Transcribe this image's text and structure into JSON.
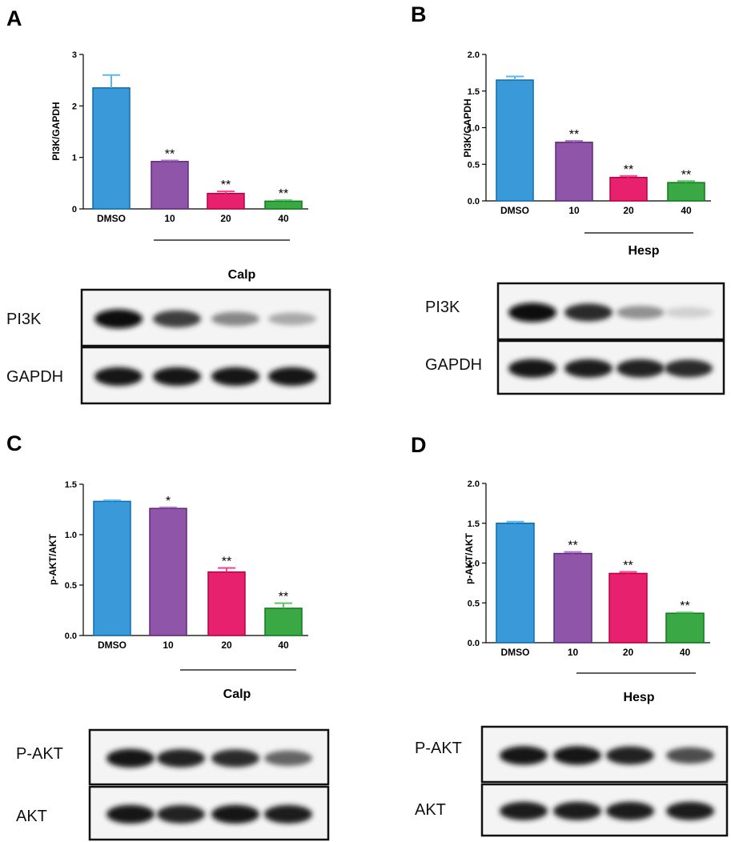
{
  "chart_data": [
    {
      "type": "bar",
      "panel": "A",
      "ylabel": "PI3K/GAPDH",
      "group_label": "Calp",
      "categories": [
        "DMSO",
        "10",
        "20",
        "40"
      ],
      "values": [
        2.35,
        0.92,
        0.3,
        0.15
      ],
      "errors": [
        0.25,
        0.02,
        0.04,
        0.02
      ],
      "significance": [
        "",
        "**",
        "**",
        "**"
      ],
      "ylim": [
        0,
        3
      ],
      "yticks": [
        "0",
        "1",
        "2",
        "3"
      ],
      "colors": [
        "#3a9ad9",
        "#8e55a8",
        "#e7216d",
        "#3aa845"
      ],
      "blot": {
        "rows": [
          {
            "label": "PI3K",
            "intensity": [
              1.0,
              0.78,
              0.45,
              0.3
            ]
          },
          {
            "label": "GAPDH",
            "intensity": [
              0.95,
              0.95,
              0.95,
              0.95
            ]
          }
        ]
      }
    },
    {
      "type": "bar",
      "panel": "B",
      "ylabel": "PI3K/GAPDH",
      "group_label": "Hesp",
      "categories": [
        "DMSO",
        "10",
        "20",
        "40"
      ],
      "values": [
        1.65,
        0.8,
        0.32,
        0.25
      ],
      "errors": [
        0.05,
        0.02,
        0.02,
        0.02
      ],
      "significance": [
        "",
        "**",
        "**",
        "**"
      ],
      "ylim": [
        0,
        2.0
      ],
      "yticks": [
        "0.0",
        "0.5",
        "1.0",
        "1.5",
        "2.0"
      ],
      "colors": [
        "#3a9ad9",
        "#8e55a8",
        "#e7216d",
        "#3aa845"
      ],
      "blot": {
        "rows": [
          {
            "label": "PI3K",
            "intensity": [
              1.0,
              0.85,
              0.4,
              0.12
            ]
          },
          {
            "label": "GAPDH",
            "intensity": [
              0.95,
              0.92,
              0.9,
              0.85
            ]
          }
        ]
      }
    },
    {
      "type": "bar",
      "panel": "C",
      "ylabel": "p-AKT/AKT",
      "group_label": "Calp",
      "categories": [
        "DMSO",
        "10",
        "20",
        "40"
      ],
      "values": [
        1.33,
        1.26,
        0.63,
        0.27
      ],
      "errors": [
        0.01,
        0.01,
        0.04,
        0.05
      ],
      "significance": [
        "",
        "*",
        "**",
        "**"
      ],
      "ylim": [
        0,
        1.5
      ],
      "yticks": [
        "0.0",
        "0.5",
        "1.0",
        "1.5"
      ],
      "colors": [
        "#3a9ad9",
        "#8e55a8",
        "#e7216d",
        "#3aa845"
      ],
      "blot": {
        "rows": [
          {
            "label": "P-AKT",
            "intensity": [
              0.95,
              0.9,
              0.85,
              0.6
            ]
          },
          {
            "label": "AKT",
            "intensity": [
              0.95,
              0.9,
              0.95,
              0.92
            ]
          }
        ]
      }
    },
    {
      "type": "bar",
      "panel": "D",
      "ylabel": "p-AKT/AKT",
      "group_label": "Hesp",
      "categories": [
        "DMSO",
        "10",
        "20",
        "40"
      ],
      "values": [
        1.5,
        1.12,
        0.87,
        0.37
      ],
      "errors": [
        0.02,
        0.02,
        0.02,
        0.01
      ],
      "significance": [
        "",
        "**",
        "**",
        "**"
      ],
      "ylim": [
        0,
        2.0
      ],
      "yticks": [
        "0.0",
        "0.5",
        "1.0",
        "1.5",
        "2.0"
      ],
      "colors": [
        "#3a9ad9",
        "#8e55a8",
        "#e7216d",
        "#3aa845"
      ],
      "blot": {
        "rows": [
          {
            "label": "P-AKT",
            "intensity": [
              0.95,
              0.95,
              0.9,
              0.7
            ]
          },
          {
            "label": "AKT",
            "intensity": [
              0.92,
              0.92,
              0.92,
              0.92
            ]
          }
        ]
      }
    }
  ]
}
